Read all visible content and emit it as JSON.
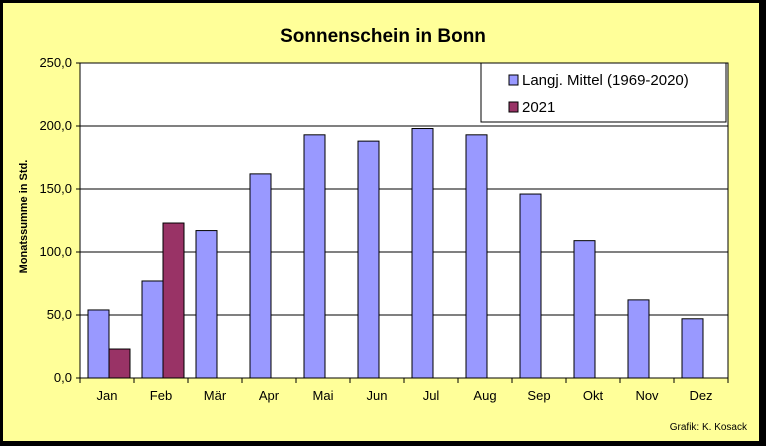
{
  "chart_data": {
    "type": "bar",
    "title": "Sonnenschein in Bonn",
    "xlabel": "",
    "ylabel": "Monatssumme in Std.",
    "ylim": [
      0,
      250
    ],
    "yticks": [
      "0,0",
      "50,0",
      "100,0",
      "150,0",
      "200,0",
      "250,0"
    ],
    "categories": [
      "Jan",
      "Feb",
      "Mär",
      "Apr",
      "Mai",
      "Jun",
      "Jul",
      "Aug",
      "Sep",
      "Okt",
      "Nov",
      "Dez"
    ],
    "series": [
      {
        "name": "Langj. Mittel (1969-2020)",
        "color": "#9999ff",
        "values": [
          54,
          77,
          117,
          162,
          193,
          188,
          198,
          193,
          146,
          109,
          62,
          47
        ]
      },
      {
        "name": "2021",
        "color": "#993366",
        "values": [
          23,
          123,
          null,
          null,
          null,
          null,
          null,
          null,
          null,
          null,
          null,
          null
        ]
      }
    ],
    "grid": true,
    "legend_position": "top-right"
  },
  "credit": "Grafik:  K. Kosack"
}
